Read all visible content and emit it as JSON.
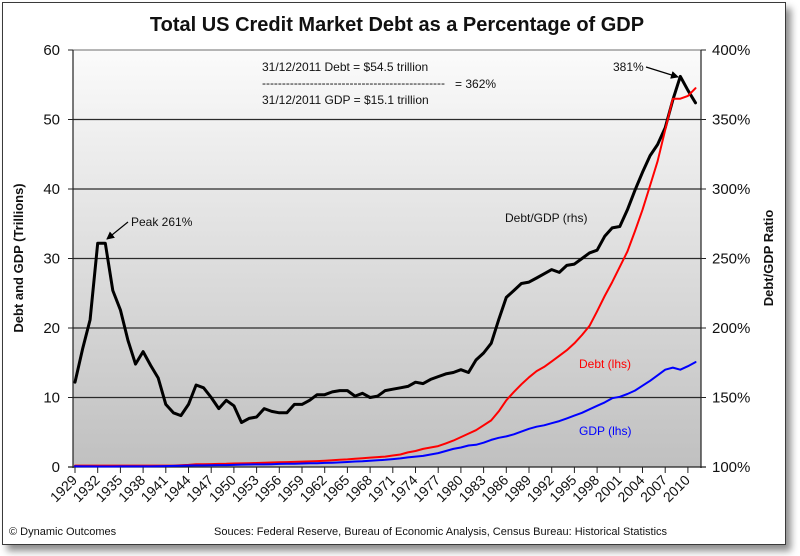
{
  "chart_data": {
    "type": "line",
    "title": "Total US Credit Market Debt as a Percentage of GDP",
    "ylabel_left": "Debt and GDP (Trillions)",
    "ylabel_right": "Debt/GDP Ratio",
    "xlabel": "",
    "ylim_left": [
      0,
      60
    ],
    "ylim_right": [
      100,
      400
    ],
    "yticks_left": [
      "0",
      "10",
      "20",
      "30",
      "40",
      "50",
      "60"
    ],
    "yticks_right": [
      "100%",
      "150%",
      "200%",
      "250%",
      "300%",
      "350%",
      "400%"
    ],
    "grid": true,
    "x_tick_labels": [
      "1929",
      "1932",
      "1935",
      "1938",
      "1941",
      "1944",
      "1947",
      "1950",
      "1953",
      "1956",
      "1959",
      "1962",
      "1965",
      "1968",
      "1971",
      "1974",
      "1977",
      "1980",
      "1983",
      "1986",
      "1989",
      "1992",
      "1995",
      "1998",
      "2001",
      "2004",
      "2007",
      "2010"
    ],
    "x": [
      1929,
      1930,
      1931,
      1932,
      1933,
      1934,
      1935,
      1936,
      1937,
      1938,
      1939,
      1940,
      1941,
      1942,
      1943,
      1944,
      1945,
      1946,
      1947,
      1948,
      1949,
      1950,
      1951,
      1952,
      1953,
      1954,
      1955,
      1956,
      1957,
      1958,
      1959,
      1960,
      1961,
      1962,
      1963,
      1964,
      1965,
      1966,
      1967,
      1968,
      1969,
      1970,
      1971,
      1972,
      1973,
      1974,
      1975,
      1976,
      1977,
      1978,
      1979,
      1980,
      1981,
      1982,
      1983,
      1984,
      1985,
      1986,
      1987,
      1988,
      1989,
      1990,
      1991,
      1992,
      1993,
      1994,
      1995,
      1996,
      1997,
      1998,
      1999,
      2000,
      2001,
      2002,
      2003,
      2004,
      2005,
      2006,
      2007,
      2008,
      2009,
      2010,
      2011
    ],
    "series": [
      {
        "name": "Debt/GDP (rhs)",
        "axis": "right",
        "color": "#000000",
        "values": [
          161,
          185,
          206,
          261,
          261,
          227,
          213,
          191,
          174,
          183,
          173,
          164,
          145,
          139,
          137,
          145,
          159,
          157,
          150,
          142,
          148,
          144,
          132,
          135,
          136,
          142,
          140,
          139,
          139,
          145,
          145,
          148,
          152,
          152,
          154,
          155,
          155,
          151,
          153,
          150,
          151,
          155,
          156,
          157,
          158,
          161,
          160,
          163,
          165,
          167,
          168,
          170,
          168,
          177,
          182,
          189,
          206,
          222,
          227,
          232,
          233,
          236,
          239,
          242,
          240,
          245,
          246,
          250,
          254,
          256,
          266,
          272,
          273,
          285,
          299,
          312,
          324,
          332,
          344,
          364,
          381,
          371,
          362
        ]
      },
      {
        "name": "Debt (lhs)",
        "axis": "left",
        "color": "#ff0000",
        "values": [
          0.2,
          0.2,
          0.2,
          0.2,
          0.2,
          0.2,
          0.2,
          0.2,
          0.2,
          0.2,
          0.2,
          0.2,
          0.2,
          0.2,
          0.25,
          0.3,
          0.4,
          0.4,
          0.42,
          0.44,
          0.46,
          0.5,
          0.52,
          0.55,
          0.58,
          0.61,
          0.65,
          0.68,
          0.7,
          0.74,
          0.77,
          0.8,
          0.85,
          0.9,
          0.96,
          1.03,
          1.1,
          1.18,
          1.26,
          1.35,
          1.43,
          1.5,
          1.65,
          1.8,
          2.1,
          2.3,
          2.6,
          2.8,
          3.0,
          3.4,
          3.8,
          4.3,
          4.8,
          5.3,
          6.0,
          6.7,
          8.0,
          9.6,
          10.8,
          11.9,
          12.9,
          13.8,
          14.4,
          15.2,
          16.0,
          16.8,
          17.8,
          19.0,
          20.3,
          22.4,
          24.6,
          26.6,
          28.8,
          31.0,
          33.9,
          37.0,
          40.5,
          44.0,
          48.5,
          53.0,
          53.0,
          53.4,
          54.5
        ]
      },
      {
        "name": "GDP (lhs)",
        "axis": "left",
        "color": "#0000ff",
        "values": [
          0.1,
          0.09,
          0.08,
          0.07,
          0.07,
          0.07,
          0.08,
          0.08,
          0.09,
          0.09,
          0.09,
          0.1,
          0.13,
          0.16,
          0.19,
          0.21,
          0.23,
          0.23,
          0.25,
          0.27,
          0.27,
          0.3,
          0.34,
          0.36,
          0.38,
          0.38,
          0.41,
          0.44,
          0.46,
          0.47,
          0.5,
          0.53,
          0.55,
          0.59,
          0.62,
          0.66,
          0.72,
          0.79,
          0.83,
          0.9,
          0.97,
          1.04,
          1.13,
          1.24,
          1.38,
          1.5,
          1.6,
          1.8,
          2.0,
          2.3,
          2.6,
          2.8,
          3.1,
          3.2,
          3.5,
          3.9,
          4.2,
          4.4,
          4.7,
          5.1,
          5.5,
          5.8,
          6.0,
          6.3,
          6.6,
          7.0,
          7.4,
          7.8,
          8.3,
          8.8,
          9.3,
          9.9,
          10.1,
          10.5,
          11.0,
          11.7,
          12.4,
          13.2,
          14.0,
          14.3,
          14.0,
          14.5,
          15.1
        ]
      }
    ],
    "annotations": {
      "peak": "Peak 261%",
      "max_recent": "381%",
      "debt_line": "31/12/2011 Debt  = $54.5 trillion",
      "divider": "----------------------------------------------",
      "equals": "=   362%",
      "gdp_line": "31/12/2011 GDP  = $15.1 trillion",
      "series_label_ratio": "Debt/GDP (rhs)",
      "series_label_debt": "Debt (lhs)",
      "series_label_gdp": "GDP (lhs)"
    },
    "footer_left": "© Dynamic Outcomes",
    "footer_right": "Souces:  Federal Reserve, Bureau of Economic Analysis, Census Bureau: Historical Statistics"
  }
}
